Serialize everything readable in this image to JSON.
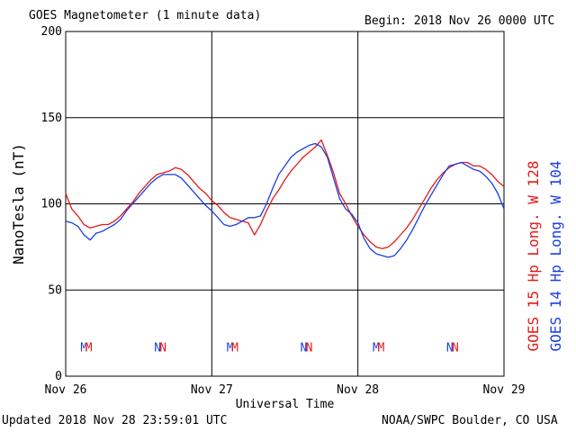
{
  "header": {
    "title": "GOES Magnetometer (1 minute data)",
    "begin": "Begin:  2018 Nov 26 0000 UTC"
  },
  "footer": {
    "updated": "Updated 2018 Nov 28 23:59:01 UTC",
    "credit": "NOAA/SWPC Boulder, CO USA"
  },
  "colors": {
    "goes15": "#e41a1a",
    "goes14": "#1a3ee4",
    "grid": "#000000",
    "background": "#ffffff"
  },
  "chart_data": {
    "type": "line",
    "ylabel": "NanoTesla (nT)",
    "xlabel": "Universal Time",
    "ylim": [
      0,
      200
    ],
    "xlim": [
      0,
      72
    ],
    "y_ticks": [
      0,
      50,
      100,
      150,
      200
    ],
    "x_ticks": [
      {
        "x": 0,
        "label": "Nov 26"
      },
      {
        "x": 24,
        "label": "Nov 27"
      },
      {
        "x": 48,
        "label": "Nov 28"
      },
      {
        "x": 72,
        "label": "Nov 29"
      }
    ],
    "grid": true,
    "series": [
      {
        "name": "GOES 15 Hp  Long. W 128",
        "color": "#e41a1a",
        "x": [
          0,
          1,
          2,
          3,
          4,
          5,
          6,
          7,
          8,
          9,
          10,
          11,
          12,
          13,
          14,
          15,
          16,
          17,
          18,
          19,
          20,
          21,
          22,
          23,
          24,
          25,
          26,
          27,
          28,
          29,
          30,
          31,
          32,
          33,
          34,
          35,
          36,
          37,
          38,
          39,
          40,
          41,
          42,
          43,
          44,
          45,
          46,
          47,
          48,
          49,
          50,
          51,
          52,
          53,
          54,
          55,
          56,
          57,
          58,
          59,
          60,
          61,
          62,
          63,
          64,
          65,
          66,
          67,
          68,
          69,
          70,
          71,
          72
        ],
        "y": [
          106,
          97,
          93,
          88,
          86,
          87,
          88,
          88,
          90,
          93,
          97,
          101,
          106,
          110,
          114,
          117,
          118,
          119,
          121,
          120,
          117,
          113,
          109,
          106,
          102,
          99,
          95,
          92,
          91,
          90,
          89,
          82,
          88,
          96,
          103,
          108,
          114,
          119,
          123,
          127,
          130,
          133,
          137,
          128,
          118,
          106,
          100,
          93,
          87,
          82,
          78,
          75,
          74,
          75,
          78,
          82,
          86,
          91,
          97,
          103,
          109,
          114,
          118,
          121,
          123,
          124,
          124,
          122,
          122,
          120,
          117,
          113,
          110
        ]
      },
      {
        "name": "GOES 14 Hp  Long. W 104",
        "color": "#1a3ee4",
        "x": [
          0,
          1,
          2,
          3,
          4,
          5,
          6,
          7,
          8,
          9,
          10,
          11,
          12,
          13,
          14,
          15,
          16,
          17,
          18,
          19,
          20,
          21,
          22,
          23,
          24,
          25,
          26,
          27,
          28,
          29,
          30,
          31,
          32,
          33,
          34,
          35,
          36,
          37,
          38,
          39,
          40,
          41,
          42,
          43,
          44,
          45,
          46,
          47,
          48,
          49,
          50,
          51,
          52,
          53,
          54,
          55,
          56,
          57,
          58,
          59,
          60,
          61,
          62,
          63,
          64,
          65,
          66,
          67,
          68,
          69,
          70,
          71,
          72
        ],
        "y": [
          90,
          89,
          87,
          82,
          79,
          83,
          84,
          86,
          88,
          91,
          96,
          100,
          104,
          108,
          112,
          115,
          117,
          117,
          117,
          115,
          111,
          107,
          103,
          99,
          96,
          92,
          88,
          87,
          88,
          90,
          92,
          92,
          93,
          100,
          109,
          117,
          122,
          127,
          130,
          132,
          134,
          135,
          133,
          127,
          115,
          103,
          97,
          94,
          89,
          80,
          74,
          71,
          70,
          69,
          70,
          74,
          79,
          85,
          92,
          99,
          105,
          111,
          117,
          122,
          123,
          124,
          122,
          120,
          119,
          116,
          112,
          106,
          97
        ]
      }
    ],
    "markers": [
      {
        "x": 3.0,
        "label": "M",
        "series": "GOES 14 Hp  Long. W 104"
      },
      {
        "x": 3.8,
        "label": "M",
        "series": "GOES 15 Hp  Long. W 128"
      },
      {
        "x": 15.1,
        "label": "N",
        "series": "GOES 14 Hp  Long. W 104"
      },
      {
        "x": 16.0,
        "label": "N",
        "series": "GOES 15 Hp  Long. W 128"
      },
      {
        "x": 27.0,
        "label": "M",
        "series": "GOES 14 Hp  Long. W 104"
      },
      {
        "x": 27.8,
        "label": "M",
        "series": "GOES 15 Hp  Long. W 128"
      },
      {
        "x": 39.1,
        "label": "N",
        "series": "GOES 14 Hp  Long. W 104"
      },
      {
        "x": 40.0,
        "label": "N",
        "series": "GOES 15 Hp  Long. W 128"
      },
      {
        "x": 51.0,
        "label": "M",
        "series": "GOES 14 Hp  Long. W 104"
      },
      {
        "x": 51.8,
        "label": "M",
        "series": "GOES 15 Hp  Long. W 128"
      },
      {
        "x": 63.1,
        "label": "N",
        "series": "GOES 14 Hp  Long. W 104"
      },
      {
        "x": 64.0,
        "label": "N",
        "series": "GOES 15 Hp  Long. W 128"
      }
    ],
    "marker_level": 17
  }
}
